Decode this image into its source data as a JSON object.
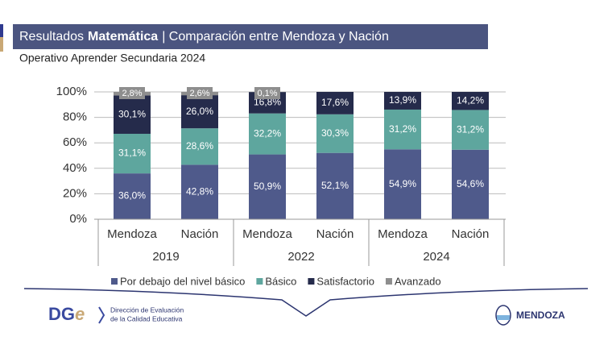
{
  "chart_data": {
    "type": "stacked-bar",
    "title": [
      "Resultados",
      "Matemática",
      "| Comparación entre Mendoza y Nación"
    ],
    "subtitle": "Operativo Aprender Secundaria 2024",
    "categories": [
      "Mendoza",
      "Nación",
      "Mendoza",
      "Nación",
      "Mendoza",
      "Nación"
    ],
    "groups": [
      "2019",
      "2022",
      "2024"
    ],
    "ylim": [
      0,
      100
    ],
    "yticks": [
      {
        "value": 0,
        "label": "0%"
      },
      {
        "value": 20,
        "label": "20%"
      },
      {
        "value": 40,
        "label": "40%"
      },
      {
        "value": 60,
        "label": "60%"
      },
      {
        "value": 80,
        "label": "80%"
      },
      {
        "value": 100,
        "label": "100%"
      }
    ],
    "grid": true,
    "legend": "bottom",
    "series": [
      {
        "name": "Por debajo del nivel básico",
        "color": "#4f5a8b",
        "values": [
          36.0,
          42.8,
          50.9,
          52.1,
          54.9,
          54.6
        ],
        "value_labels": [
          "36,0%",
          "42,8%",
          "50,9%",
          "52,1%",
          "54,9%",
          "54,6%"
        ]
      },
      {
        "name": "Básico",
        "color": "#5ea69e",
        "values": [
          31.1,
          28.6,
          32.2,
          30.3,
          31.2,
          31.2
        ],
        "value_labels": [
          "31,1%",
          "28,6%",
          "32,2%",
          "30,3%",
          "31,2%",
          "31,2%"
        ]
      },
      {
        "name": "Satisfactorio",
        "color": "#252b4b",
        "values": [
          30.1,
          26.0,
          16.8,
          17.6,
          13.9,
          14.2
        ],
        "value_labels": [
          "30,1%",
          "26,0%",
          "16,8%",
          "17,6%",
          "13,9%",
          "14,2%"
        ]
      },
      {
        "name": "Avanzado",
        "color": "#8e8e8e",
        "values": [
          2.8,
          2.6,
          0.1,
          null,
          null,
          null
        ],
        "value_labels": [
          "2,8%",
          "2,6%",
          "0,1%",
          null,
          null,
          null
        ]
      }
    ]
  },
  "footer": {
    "logo": "DG",
    "logo_e": "e",
    "org_line1": "Dirección de Evaluación",
    "org_line2": "de la Calidad Educativa",
    "province": "MENDOZA"
  }
}
